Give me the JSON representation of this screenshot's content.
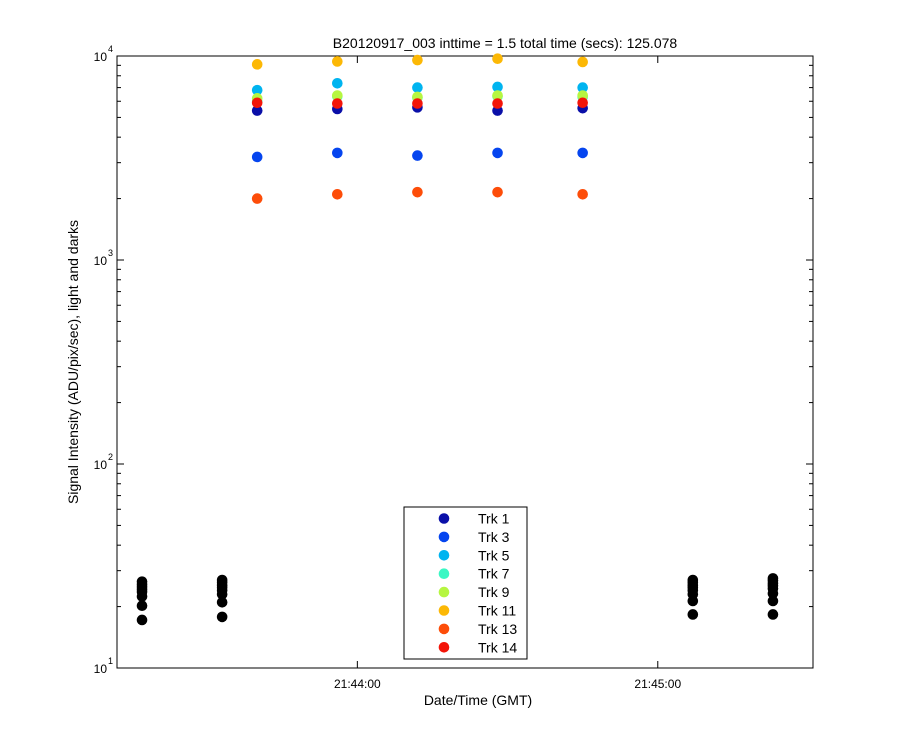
{
  "chart_data": {
    "type": "scatter",
    "title": "B20120917_003 inttime = 1.5 total time (secs): 125.078",
    "xlabel": "Date/Time (GMT)",
    "ylabel": "Signal Intensity (ADU/pix/sec), light and darks",
    "yscale": "log",
    "ylim": [
      10,
      10000
    ],
    "xlim": [
      "21:43:12",
      "21:45:31"
    ],
    "y_ticks": [
      {
        "base": "10",
        "exp": "1",
        "value": 10
      },
      {
        "base": "10",
        "exp": "2",
        "value": 100
      },
      {
        "base": "10",
        "exp": "3",
        "value": 1000
      },
      {
        "base": "10",
        "exp": "4",
        "value": 10000
      }
    ],
    "x_ticks": [
      {
        "label": "21:44:00",
        "time": "21:44:00"
      },
      {
        "label": "21:45:00",
        "time": "21:45:00"
      }
    ],
    "grid": false,
    "legend_position": "bottom-center",
    "series": [
      {
        "name": "Trk 1",
        "color": "#0a0fa8",
        "x": [
          "21:43:40",
          "21:43:56",
          "21:44:12",
          "21:44:28",
          "21:44:45"
        ],
        "y": [
          5400,
          5500,
          5600,
          5400,
          5550
        ]
      },
      {
        "name": "Trk 3",
        "color": "#0545ef",
        "x": [
          "21:43:40",
          "21:43:56",
          "21:44:12",
          "21:44:28",
          "21:44:45"
        ],
        "y": [
          3200,
          3350,
          3250,
          3350,
          3350
        ]
      },
      {
        "name": "Trk 5",
        "color": "#00b4f0",
        "x": [
          "21:43:40",
          "21:43:56",
          "21:44:12",
          "21:44:28",
          "21:44:45"
        ],
        "y": [
          6800,
          7350,
          7000,
          7050,
          7000
        ]
      },
      {
        "name": "Trk 7",
        "color": "#3af7c4",
        "x": [
          "21:43:40",
          "21:43:56",
          "21:44:12",
          "21:44:28",
          "21:44:45"
        ],
        "y": [
          6000,
          6350,
          6250,
          6350,
          6300
        ]
      },
      {
        "name": "Trk 9",
        "color": "#b6f641",
        "x": [
          "21:43:40",
          "21:43:56",
          "21:44:12",
          "21:44:28",
          "21:44:45"
        ],
        "y": [
          6200,
          6400,
          6300,
          6400,
          6400
        ]
      },
      {
        "name": "Trk 11",
        "color": "#fcb805",
        "x": [
          "21:43:40",
          "21:43:56",
          "21:44:12",
          "21:44:28",
          "21:44:45"
        ],
        "y": [
          9100,
          9400,
          9550,
          9700,
          9350
        ]
      },
      {
        "name": "Trk 13",
        "color": "#fd4d09",
        "x": [
          "21:43:40",
          "21:43:56",
          "21:44:12",
          "21:44:28",
          "21:44:45"
        ],
        "y": [
          2000,
          2100,
          2150,
          2150,
          2100
        ]
      },
      {
        "name": "Trk 14",
        "color": "#f31509",
        "x": [
          "21:43:40",
          "21:43:56",
          "21:44:12",
          "21:44:28",
          "21:44:45"
        ],
        "y": [
          5900,
          5850,
          5850,
          5850,
          5900
        ]
      }
    ],
    "darks": {
      "color": "#000000",
      "x": [
        "21:43:17",
        "21:43:17",
        "21:43:17",
        "21:43:17",
        "21:43:17",
        "21:43:17",
        "21:43:17",
        "21:43:17",
        "21:43:33",
        "21:43:33",
        "21:43:33",
        "21:43:33",
        "21:43:33",
        "21:43:33",
        "21:43:33",
        "21:43:33",
        "21:45:07",
        "21:45:07",
        "21:45:07",
        "21:45:07",
        "21:45:07",
        "21:45:07",
        "21:45:07",
        "21:45:07",
        "21:45:23",
        "21:45:23",
        "21:45:23",
        "21:45:23",
        "21:45:23",
        "21:45:23",
        "21:45:23",
        "21:45:23"
      ],
      "y": [
        26.5,
        25.7,
        25.0,
        24.3,
        23.6,
        22.4,
        20.2,
        17.2,
        27.0,
        26.3,
        25.5,
        24.8,
        24.0,
        23.0,
        21.0,
        17.8,
        27.0,
        26.3,
        25.5,
        24.8,
        24.0,
        23.0,
        21.3,
        18.3,
        27.5,
        26.8,
        26.0,
        25.3,
        24.5,
        23.2,
        21.3,
        18.3
      ]
    }
  }
}
